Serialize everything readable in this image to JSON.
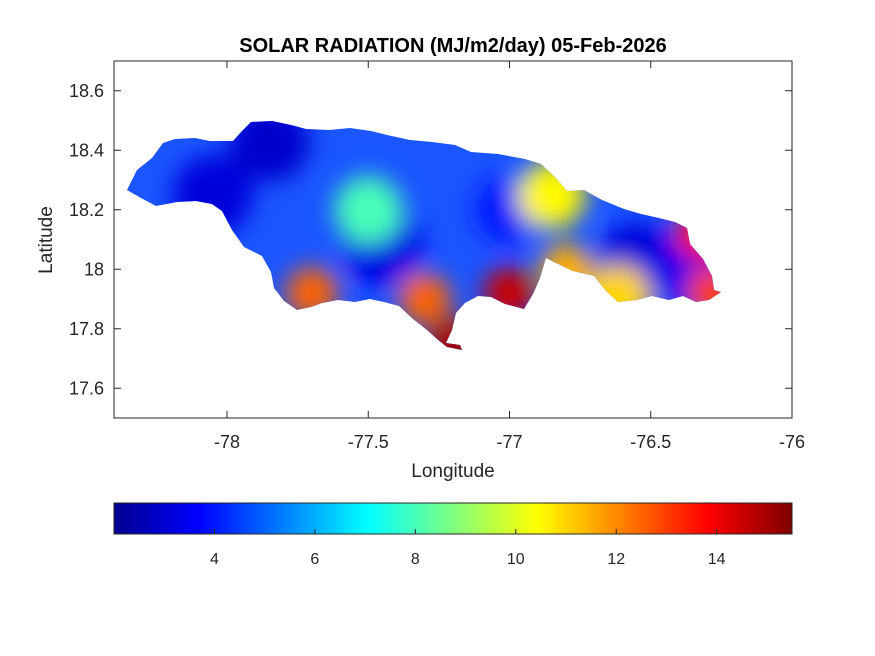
{
  "chart_data": {
    "type": "heatmap",
    "title": "SOLAR RADIATION (MJ/m2/day) 05-Feb-2026",
    "xlabel": "Longitude",
    "ylabel": "Latitude",
    "xlim": [
      -78.4,
      -76.0
    ],
    "ylim": [
      17.5,
      18.7
    ],
    "xticks": [
      -78,
      -77.5,
      -77,
      -76.5,
      -76
    ],
    "yticks": [
      17.6,
      17.8,
      18,
      18.2,
      18.4,
      18.6
    ],
    "colorbar": {
      "colormap": "jet",
      "range": [
        2.0,
        15.5
      ],
      "ticks": [
        4,
        6,
        8,
        10,
        12,
        14
      ],
      "location": "bottom"
    },
    "grid": false,
    "hotspots": [
      {
        "lon": -77.85,
        "lat": 18.43,
        "value": 3.0
      },
      {
        "lon": -78.05,
        "lat": 18.25,
        "value": 3.2
      },
      {
        "lon": -77.45,
        "lat": 18.08,
        "value": 3.3
      },
      {
        "lon": -76.55,
        "lat": 18.02,
        "value": 3.2
      },
      {
        "lon": -76.35,
        "lat": 18.0,
        "value": 3.5
      },
      {
        "lon": -77.0,
        "lat": 18.2,
        "value": 4.0
      },
      {
        "lon": -77.0,
        "lat": 17.92,
        "value": 14.5
      },
      {
        "lon": -77.2,
        "lat": 17.75,
        "value": 15.0
      },
      {
        "lon": -77.3,
        "lat": 17.9,
        "value": 12.5
      },
      {
        "lon": -77.7,
        "lat": 17.92,
        "value": 12.5
      },
      {
        "lon": -76.32,
        "lat": 18.12,
        "value": 13.5
      },
      {
        "lon": -76.28,
        "lat": 17.92,
        "value": 13.0
      },
      {
        "lon": -76.8,
        "lat": 18.0,
        "value": 11.5
      },
      {
        "lon": -76.85,
        "lat": 18.25,
        "value": 10.5
      },
      {
        "lon": -77.5,
        "lat": 18.2,
        "value": 8.0
      },
      {
        "lon": -76.62,
        "lat": 17.9,
        "value": 11.0
      }
    ]
  }
}
